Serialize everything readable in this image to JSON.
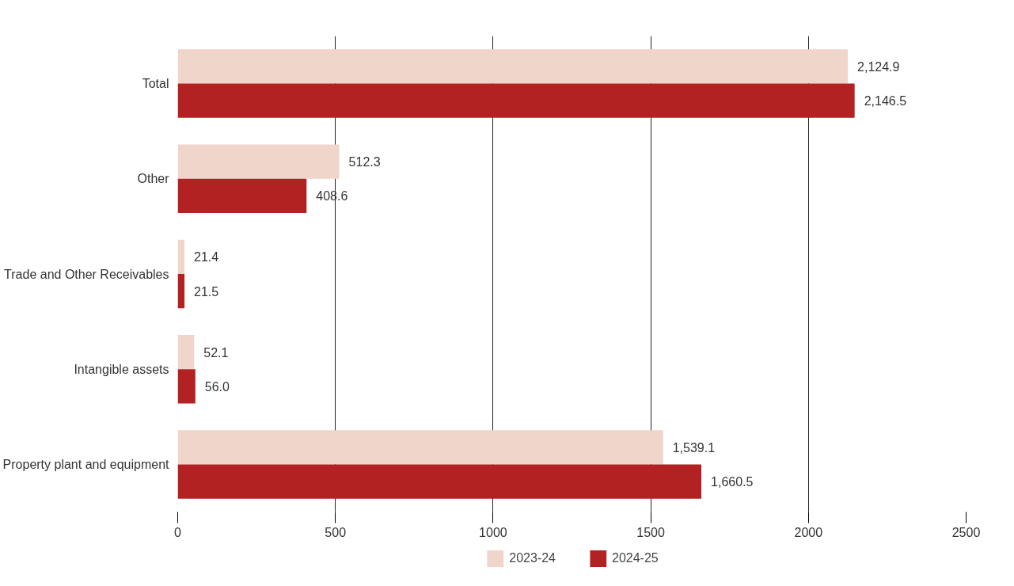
{
  "chart_data": {
    "type": "bar",
    "orientation": "horizontal",
    "categories": [
      "Total",
      "Other",
      "Trade and Other Receivables",
      "Intangible assets",
      "Property plant and equipment"
    ],
    "series": [
      {
        "name": "2023-24",
        "color": "#efd5ca",
        "values": [
          2124.9,
          512.3,
          21.4,
          52.1,
          1539.1
        ],
        "value_labels": [
          "2,124.9",
          "512.3",
          "21.4",
          "52.1",
          "1,539.1"
        ]
      },
      {
        "name": "2024-25",
        "color": "#b22222",
        "values": [
          2146.5,
          408.6,
          21.5,
          56.0,
          1660.5
        ],
        "value_labels": [
          "2,146.5",
          "408.6",
          "21.5",
          "56.0",
          "1,660.5"
        ]
      }
    ],
    "xlim": [
      0,
      2500
    ],
    "xticks": [
      0,
      500,
      1000,
      1500,
      2000,
      2500
    ],
    "grid": "x",
    "legend": "bottom"
  }
}
